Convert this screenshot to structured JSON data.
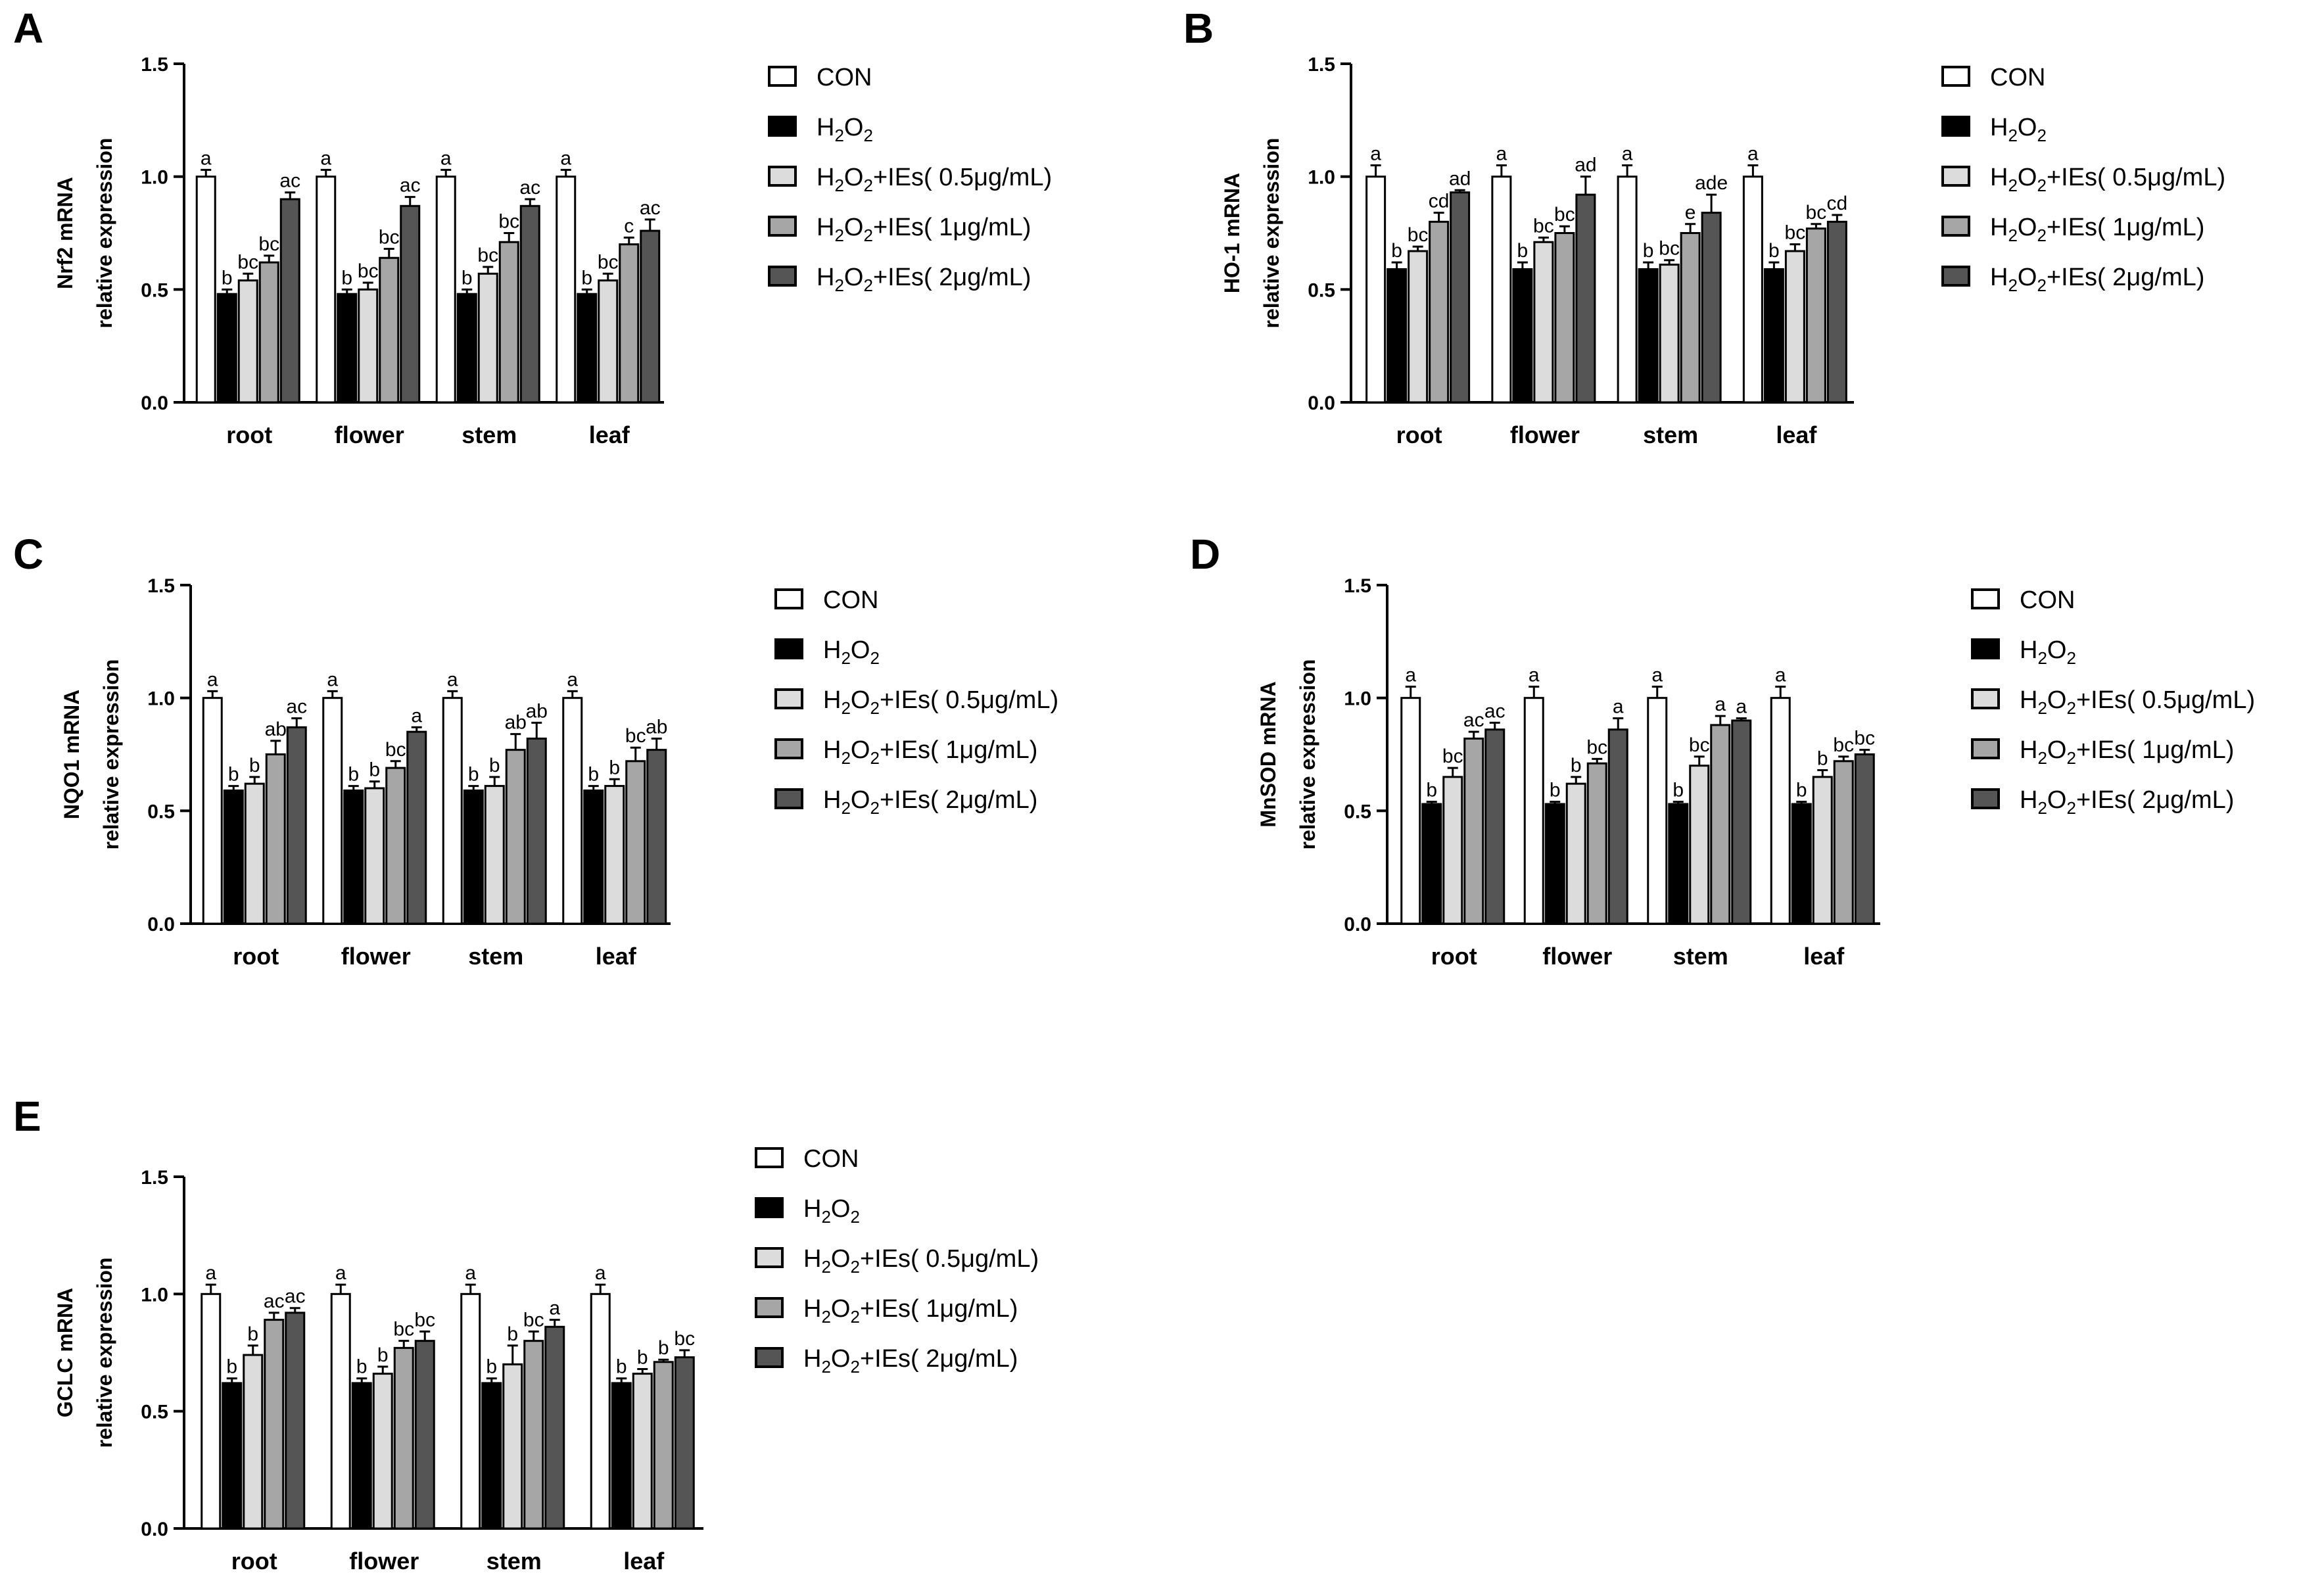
{
  "legend": {
    "entries": [
      {
        "name": "CON",
        "color": "#ffffff"
      },
      {
        "name": "H2O2",
        "color": "#000000"
      },
      {
        "name": "H2O2+IEs( 0.5μg/mL)",
        "color": "#dcdcdc"
      },
      {
        "name": "H2O2+IEs( 1μg/mL)",
        "color": "#a6a6a6"
      },
      {
        "name": "H2O2+IEs( 2μg/mL)",
        "color": "#555555"
      }
    ]
  },
  "chart_data": [
    {
      "panel": "A",
      "type": "bar",
      "ylabel": [
        "Nrf2 mRNA",
        "relative expression"
      ],
      "ylim": [
        0,
        1.5
      ],
      "yticks": [
        "0.0",
        "0.5",
        "1.0",
        "1.5"
      ],
      "categories": [
        "root",
        "flower",
        "stem",
        "leaf"
      ],
      "series": [
        {
          "name": "CON",
          "values": [
            1.0,
            1.0,
            1.0,
            1.0
          ],
          "err": [
            0.03,
            0.03,
            0.03,
            0.03
          ],
          "labels": [
            "a",
            "a",
            "a",
            "a"
          ]
        },
        {
          "name": "H2O2",
          "values": [
            0.48,
            0.48,
            0.48,
            0.48
          ],
          "err": [
            0.02,
            0.02,
            0.02,
            0.02
          ],
          "labels": [
            "b",
            "b",
            "b",
            "b"
          ]
        },
        {
          "name": "H2O2+IEs( 0.5μg/mL)",
          "values": [
            0.54,
            0.5,
            0.57,
            0.54
          ],
          "err": [
            0.03,
            0.03,
            0.03,
            0.03
          ],
          "labels": [
            "bc",
            "bc",
            "bc",
            "bc"
          ]
        },
        {
          "name": "H2O2+IEs( 1μg/mL)",
          "values": [
            0.62,
            0.64,
            0.71,
            0.7
          ],
          "err": [
            0.03,
            0.04,
            0.04,
            0.03
          ],
          "labels": [
            "bc",
            "bc",
            "bc",
            "c"
          ]
        },
        {
          "name": "H2O2+IEs( 2μg/mL)",
          "values": [
            0.9,
            0.87,
            0.87,
            0.76
          ],
          "err": [
            0.03,
            0.04,
            0.03,
            0.05
          ],
          "labels": [
            "ac",
            "ac",
            "ac",
            "ac"
          ]
        }
      ]
    },
    {
      "panel": "B",
      "type": "bar",
      "ylabel": [
        "HO-1 mRNA",
        "relative expression"
      ],
      "ylim": [
        0,
        1.5
      ],
      "yticks": [
        "0.0",
        "0.5",
        "1.0",
        "1.5"
      ],
      "categories": [
        "root",
        "flower",
        "stem",
        "leaf"
      ],
      "series": [
        {
          "name": "CON",
          "values": [
            1.0,
            1.0,
            1.0,
            1.0
          ],
          "err": [
            0.05,
            0.05,
            0.05,
            0.05
          ],
          "labels": [
            "a",
            "a",
            "a",
            "a"
          ]
        },
        {
          "name": "H2O2",
          "values": [
            0.59,
            0.59,
            0.59,
            0.59
          ],
          "err": [
            0.03,
            0.03,
            0.03,
            0.03
          ],
          "labels": [
            "b",
            "b",
            "b",
            "b"
          ]
        },
        {
          "name": "H2O2+IEs( 0.5μg/mL)",
          "values": [
            0.67,
            0.71,
            0.61,
            0.67
          ],
          "err": [
            0.02,
            0.02,
            0.02,
            0.03
          ],
          "labels": [
            "bc",
            "bc",
            "bc",
            "bc"
          ]
        },
        {
          "name": "H2O2+IEs( 1μg/mL)",
          "values": [
            0.8,
            0.75,
            0.75,
            0.77
          ],
          "err": [
            0.04,
            0.03,
            0.04,
            0.02
          ],
          "labels": [
            "cd",
            "bc",
            "e",
            "bc"
          ]
        },
        {
          "name": "H2O2+IEs( 2μg/mL)",
          "values": [
            0.93,
            0.92,
            0.84,
            0.8
          ],
          "err": [
            0.01,
            0.08,
            0.08,
            0.03
          ],
          "labels": [
            "ad",
            "ad",
            "ade",
            "cd"
          ]
        }
      ]
    },
    {
      "panel": "C",
      "type": "bar",
      "ylabel": [
        "NQO1 mRNA",
        "relative expression"
      ],
      "ylim": [
        0,
        1.5
      ],
      "yticks": [
        "0.0",
        "0.5",
        "1.0",
        "1.5"
      ],
      "categories": [
        "root",
        "flower",
        "stem",
        "leaf"
      ],
      "series": [
        {
          "name": "CON",
          "values": [
            1.0,
            1.0,
            1.0,
            1.0
          ],
          "err": [
            0.03,
            0.03,
            0.03,
            0.03
          ],
          "labels": [
            "a",
            "a",
            "a",
            "a"
          ]
        },
        {
          "name": "H2O2",
          "values": [
            0.59,
            0.59,
            0.59,
            0.59
          ],
          "err": [
            0.02,
            0.02,
            0.02,
            0.02
          ],
          "labels": [
            "b",
            "b",
            "b",
            "b"
          ]
        },
        {
          "name": "H2O2+IEs( 0.5μg/mL)",
          "values": [
            0.62,
            0.6,
            0.61,
            0.61
          ],
          "err": [
            0.03,
            0.03,
            0.04,
            0.03
          ],
          "labels": [
            "b",
            "b",
            "b",
            "b"
          ]
        },
        {
          "name": "H2O2+IEs( 1μg/mL)",
          "values": [
            0.75,
            0.69,
            0.77,
            0.72
          ],
          "err": [
            0.06,
            0.03,
            0.07,
            0.06
          ],
          "labels": [
            "ab",
            "bc",
            "ab",
            "bc"
          ]
        },
        {
          "name": "H2O2+IEs( 2μg/mL)",
          "values": [
            0.87,
            0.85,
            0.82,
            0.77
          ],
          "err": [
            0.04,
            0.02,
            0.07,
            0.05
          ],
          "labels": [
            "ac",
            "a",
            "ab",
            "ab"
          ]
        }
      ]
    },
    {
      "panel": "D",
      "type": "bar",
      "ylabel": [
        "MnSOD mRNA",
        "relative expression"
      ],
      "ylim": [
        0,
        1.5
      ],
      "yticks": [
        "0.0",
        "0.5",
        "1.0",
        "1.5"
      ],
      "categories": [
        "root",
        "flower",
        "stem",
        "leaf"
      ],
      "series": [
        {
          "name": "CON",
          "values": [
            1.0,
            1.0,
            1.0,
            1.0
          ],
          "err": [
            0.05,
            0.05,
            0.05,
            0.05
          ],
          "labels": [
            "a",
            "a",
            "a",
            "a"
          ]
        },
        {
          "name": "H2O2",
          "values": [
            0.53,
            0.53,
            0.53,
            0.53
          ],
          "err": [
            0.01,
            0.01,
            0.01,
            0.01
          ],
          "labels": [
            "b",
            "b",
            "b",
            "b"
          ]
        },
        {
          "name": "H2O2+IEs( 0.5μg/mL)",
          "values": [
            0.65,
            0.62,
            0.7,
            0.65
          ],
          "err": [
            0.04,
            0.03,
            0.04,
            0.03
          ],
          "labels": [
            "bc",
            "b",
            "bc",
            "b"
          ]
        },
        {
          "name": "H2O2+IEs( 1μg/mL)",
          "values": [
            0.82,
            0.71,
            0.88,
            0.72
          ],
          "err": [
            0.03,
            0.02,
            0.04,
            0.02
          ],
          "labels": [
            "ac",
            "bc",
            "a",
            "bc"
          ]
        },
        {
          "name": "H2O2+IEs( 2μg/mL)",
          "values": [
            0.86,
            0.86,
            0.9,
            0.75
          ],
          "err": [
            0.03,
            0.05,
            0.01,
            0.02
          ],
          "labels": [
            "ac",
            "a",
            "a",
            "bc"
          ]
        }
      ]
    },
    {
      "panel": "E",
      "type": "bar",
      "ylabel": [
        "GCLC mRNA",
        "relative expression"
      ],
      "ylim": [
        0,
        1.5
      ],
      "yticks": [
        "0.0",
        "0.5",
        "1.0",
        "1.5"
      ],
      "categories": [
        "root",
        "flower",
        "stem",
        "leaf"
      ],
      "series": [
        {
          "name": "CON",
          "values": [
            1.0,
            1.0,
            1.0,
            1.0
          ],
          "err": [
            0.04,
            0.04,
            0.04,
            0.04
          ],
          "labels": [
            "a",
            "a",
            "a",
            "a"
          ]
        },
        {
          "name": "H2O2",
          "values": [
            0.62,
            0.62,
            0.62,
            0.62
          ],
          "err": [
            0.02,
            0.02,
            0.02,
            0.02
          ],
          "labels": [
            "b",
            "b",
            "b",
            "b"
          ]
        },
        {
          "name": "H2O2+IEs( 0.5μg/mL)",
          "values": [
            0.74,
            0.66,
            0.7,
            0.66
          ],
          "err": [
            0.04,
            0.03,
            0.08,
            0.02
          ],
          "labels": [
            "b",
            "b",
            "b",
            "b"
          ]
        },
        {
          "name": "H2O2+IEs( 1μg/mL)",
          "values": [
            0.89,
            0.77,
            0.8,
            0.71
          ],
          "err": [
            0.03,
            0.03,
            0.04,
            0.01
          ],
          "labels": [
            "ac",
            "bc",
            "bc",
            "b"
          ]
        },
        {
          "name": "H2O2+IEs( 2μg/mL)",
          "values": [
            0.92,
            0.8,
            0.86,
            0.73
          ],
          "err": [
            0.02,
            0.04,
            0.03,
            0.03
          ],
          "labels": [
            "ac",
            "bc",
            "a",
            "bc"
          ]
        }
      ]
    }
  ]
}
